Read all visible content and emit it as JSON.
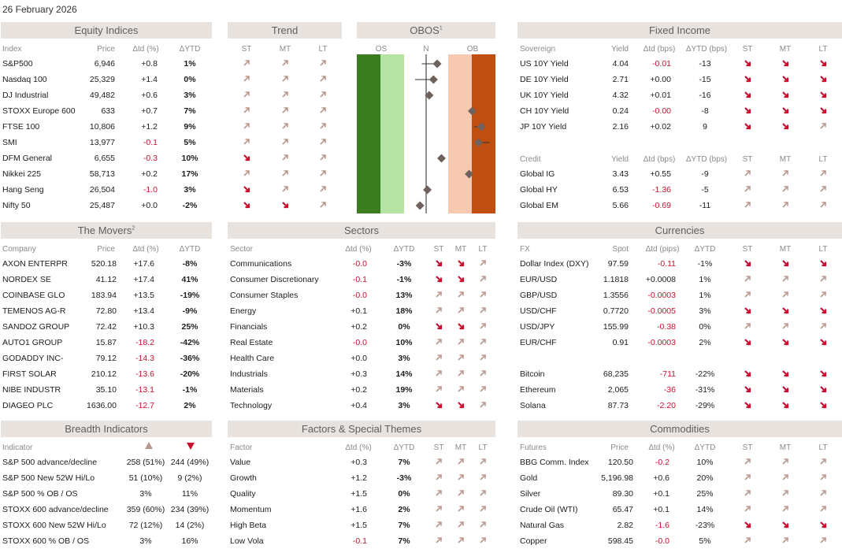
{
  "date": "26 February 2026",
  "colors": {
    "header_bg": "#e8e3de",
    "neg": "#c8102e",
    "up_arrow": "#b9988e",
    "down_arrow": "#c8102e",
    "os_dark": "#3a7d1f",
    "os_light": "#b5e3a4",
    "ob_light": "#f6c9b0",
    "ob_dark": "#c04e10"
  },
  "equity": {
    "title": "Equity Indices",
    "cols": [
      "Index",
      "Price",
      "Δtd (%)",
      "ΔYTD"
    ],
    "rows": [
      {
        "name": "S&P500",
        "price": "6,946",
        "d": "+0.8",
        "ytd": "1%"
      },
      {
        "name": "Nasdaq 100",
        "price": "25,329",
        "d": "+1.4",
        "ytd": "0%"
      },
      {
        "name": "DJ Industrial",
        "price": "49,482",
        "d": "+0.6",
        "ytd": "3%"
      },
      {
        "name": "STOXX Europe 600",
        "price": "633",
        "d": "+0.7",
        "ytd": "7%"
      },
      {
        "name": "FTSE 100",
        "price": "10,806",
        "d": "+1.2",
        "ytd": "9%"
      },
      {
        "name": "SMI",
        "price": "13,977",
        "d": "-0.1",
        "ytd": "5%"
      },
      {
        "name": "DFM General",
        "price": "6,655",
        "d": "-0.3",
        "ytd": "10%"
      },
      {
        "name": "Nikkei 225",
        "price": "58,713",
        "d": "+0.2",
        "ytd": "17%"
      },
      {
        "name": "Hang Seng",
        "price": "26,504",
        "d": "-1.0",
        "ytd": "3%"
      },
      {
        "name": "Nifty 50",
        "price": "25,487",
        "d": "+0.0",
        "ytd": "-2%"
      }
    ]
  },
  "trend": {
    "title": "Trend",
    "cols": [
      "ST",
      "MT",
      "LT"
    ],
    "rows": [
      [
        "up",
        "up",
        "up"
      ],
      [
        "up",
        "up",
        "up"
      ],
      [
        "up",
        "up",
        "up"
      ],
      [
        "up",
        "up",
        "up"
      ],
      [
        "up",
        "up",
        "up"
      ],
      [
        "up",
        "up",
        "up"
      ],
      [
        "down",
        "up",
        "up"
      ],
      [
        "up",
        "up",
        "up"
      ],
      [
        "down",
        "up",
        "up"
      ],
      [
        "down",
        "down",
        "up"
      ]
    ]
  },
  "obos": {
    "title": "OBOS",
    "sup": "1",
    "labels": [
      "OS",
      "N",
      "OB"
    ],
    "markers": [
      {
        "v": 0.18,
        "w": -0.25
      },
      {
        "v": 0.12,
        "w": -0.3
      },
      {
        "v": 0.05,
        "w": 0
      },
      {
        "v": 0.75,
        "w": 0
      },
      {
        "v": 0.9,
        "w": -0.12
      },
      {
        "v": 0.85,
        "w": 0.18
      },
      {
        "v": 0.25,
        "w": 0
      },
      {
        "v": 0.7,
        "w": 0
      },
      {
        "v": 0.02,
        "w": 0
      },
      {
        "v": -0.1,
        "w": 0
      }
    ]
  },
  "fixed": {
    "title": "Fixed Income",
    "cols": [
      "Sovereign",
      "Yield",
      "Δtd (bps)",
      "ΔYTD (bps)",
      "ST",
      "MT",
      "LT"
    ],
    "rows": [
      {
        "name": "US 10Y Yield",
        "y": "4.04",
        "d": "-0.01",
        "ytd": "-13",
        "t": [
          "down",
          "down",
          "down"
        ]
      },
      {
        "name": "DE 10Y Yield",
        "y": "2.71",
        "d": "+0.00",
        "ytd": "-15",
        "t": [
          "down",
          "down",
          "down"
        ]
      },
      {
        "name": "UK 10Y Yield",
        "y": "4.32",
        "d": "+0.01",
        "ytd": "-16",
        "t": [
          "down",
          "down",
          "down"
        ]
      },
      {
        "name": "CH 10Y Yield",
        "y": "0.24",
        "d": "-0.00",
        "ytd": "-8",
        "t": [
          "down",
          "down",
          "down"
        ]
      },
      {
        "name": "JP 10Y Yield",
        "y": "2.16",
        "d": "+0.02",
        "ytd": "9",
        "t": [
          "down",
          "down",
          "up"
        ]
      }
    ],
    "credit_cols": [
      "Credit",
      "Yield",
      "Δtd (bps)",
      "ΔYTD (bps)",
      "ST",
      "MT",
      "LT"
    ],
    "credit": [
      {
        "name": "Global IG",
        "y": "3.43",
        "d": "+0.55",
        "ytd": "-9",
        "t": [
          "up",
          "up",
          "up"
        ]
      },
      {
        "name": "Global HY",
        "y": "6.53",
        "d": "-1.36",
        "ytd": "-5",
        "t": [
          "up",
          "up",
          "up"
        ]
      },
      {
        "name": "Global EM",
        "y": "5.66",
        "d": "-0.69",
        "ytd": "-11",
        "t": [
          "up",
          "up",
          "up"
        ]
      }
    ]
  },
  "movers": {
    "title": "The Movers",
    "sup": "2",
    "cols": [
      "Company",
      "Price",
      "Δtd (%)",
      "ΔYTD"
    ],
    "rows": [
      {
        "name": "AXON ENTERPR",
        "price": "520.18",
        "d": "+17.6",
        "ytd": "-8%"
      },
      {
        "name": "NORDEX SE",
        "price": "41.12",
        "d": "+17.4",
        "ytd": "41%"
      },
      {
        "name": "COINBASE GLO",
        "price": "183.94",
        "d": "+13.5",
        "ytd": "-19%"
      },
      {
        "name": "TEMENOS AG-R",
        "price": "72.80",
        "d": "+13.4",
        "ytd": "-9%"
      },
      {
        "name": "SANDOZ GROUP",
        "price": "72.42",
        "d": "+10.3",
        "ytd": "25%"
      },
      {
        "name": "AUTO1 GROUP",
        "price": "15.87",
        "d": "-18.2",
        "ytd": "-42%"
      },
      {
        "name": "GODADDY INC-",
        "price": "79.12",
        "d": "-14.3",
        "ytd": "-36%"
      },
      {
        "name": "FIRST SOLAR",
        "price": "210.12",
        "d": "-13.6",
        "ytd": "-20%"
      },
      {
        "name": "NIBE INDUSTR",
        "price": "35.10",
        "d": "-13.1",
        "ytd": "-1%"
      },
      {
        "name": "DIAGEO PLC",
        "price": "1636.00",
        "d": "-12.7",
        "ytd": "2%"
      }
    ]
  },
  "sectors": {
    "title": "Sectors",
    "cols": [
      "Sector",
      "Δtd (%)",
      "ΔYTD",
      "ST",
      "MT",
      "LT"
    ],
    "rows": [
      {
        "name": "Communications",
        "d": "-0.0",
        "ytd": "-3%",
        "t": [
          "down",
          "down",
          "up"
        ]
      },
      {
        "name": "Consumer Discretionary",
        "d": "-0.1",
        "ytd": "-1%",
        "t": [
          "down",
          "down",
          "up"
        ]
      },
      {
        "name": "Consumer Staples",
        "d": "-0.0",
        "ytd": "13%",
        "t": [
          "up",
          "up",
          "up"
        ]
      },
      {
        "name": "Energy",
        "d": "+0.1",
        "ytd": "18%",
        "t": [
          "up",
          "up",
          "up"
        ]
      },
      {
        "name": "Financials",
        "d": "+0.2",
        "ytd": "0%",
        "t": [
          "down",
          "down",
          "up"
        ]
      },
      {
        "name": "Real Estate",
        "d": "-0.0",
        "ytd": "10%",
        "t": [
          "up",
          "up",
          "up"
        ]
      },
      {
        "name": "Health Care",
        "d": "+0.0",
        "ytd": "3%",
        "t": [
          "up",
          "up",
          "up"
        ]
      },
      {
        "name": "Industrials",
        "d": "+0.3",
        "ytd": "14%",
        "t": [
          "up",
          "up",
          "up"
        ]
      },
      {
        "name": "Materials",
        "d": "+0.2",
        "ytd": "19%",
        "t": [
          "up",
          "up",
          "up"
        ]
      },
      {
        "name": "Technology",
        "d": "+0.4",
        "ytd": "3%",
        "t": [
          "down",
          "down",
          "up"
        ]
      }
    ]
  },
  "currencies": {
    "title": "Currencies",
    "cols": [
      "FX",
      "Spot",
      "Δtd (pips)",
      "ΔYTD",
      "ST",
      "MT",
      "LT"
    ],
    "rows": [
      {
        "name": "Dollar Index (DXY)",
        "s": "97.59",
        "d": "-0.11",
        "ytd": "-1%",
        "t": [
          "down",
          "down",
          "down"
        ]
      },
      {
        "name": "EUR/USD",
        "s": "1.1818",
        "d": "+0.0008",
        "ytd": "1%",
        "t": [
          "up",
          "up",
          "up"
        ]
      },
      {
        "name": "GBP/USD",
        "s": "1.3556",
        "d": "-0.0003",
        "ytd": "1%",
        "t": [
          "up",
          "up",
          "up"
        ]
      },
      {
        "name": "USD/CHF",
        "s": "0.7720",
        "d": "-0.0005",
        "ytd": "3%",
        "t": [
          "down",
          "down",
          "down"
        ]
      },
      {
        "name": "USD/JPY",
        "s": "155.99",
        "d": "-0.38",
        "ytd": "0%",
        "t": [
          "up",
          "up",
          "up"
        ]
      },
      {
        "name": "EUR/CHF",
        "s": "0.91",
        "d": "-0.0003",
        "ytd": "2%",
        "t": [
          "down",
          "down",
          "down"
        ]
      }
    ],
    "crypto": [
      {
        "name": "Bitcoin",
        "s": "68,235",
        "d": "-711",
        "ytd": "-22%",
        "t": [
          "down",
          "down",
          "down"
        ]
      },
      {
        "name": "Ethereum",
        "s": "2,065",
        "d": "-36",
        "ytd": "-31%",
        "t": [
          "down",
          "down",
          "down"
        ]
      },
      {
        "name": "Solana",
        "s": "87.73",
        "d": "-2.20",
        "ytd": "-29%",
        "t": [
          "down",
          "down",
          "down"
        ]
      }
    ]
  },
  "breadth": {
    "title": "Breadth Indicators",
    "cols": [
      "Indicator"
    ],
    "rows": [
      {
        "name": "S&P 500 advance/decline",
        "a": "258 (51%)",
        "b": "244 (49%)"
      },
      {
        "name": "S&P 500 New 52W Hi/Lo",
        "a": "51 (10%)",
        "b": "9 (2%)"
      },
      {
        "name": "S&P 500 % OB / OS",
        "a": "3%",
        "b": "11%"
      },
      {
        "name": "STOXX 600 advance/decline",
        "a": "359 (60%)",
        "b": "234 (39%)"
      },
      {
        "name": "STOXX 600 New 52W Hi/Lo",
        "a": "72 (12%)",
        "b": "14 (2%)"
      },
      {
        "name": "STOXX 600 % OB / OS",
        "a": "3%",
        "b": "16%"
      }
    ]
  },
  "factors": {
    "title": "Factors & Special Themes",
    "cols": [
      "Factor",
      "Δtd (%)",
      "ΔYTD",
      "ST",
      "MT",
      "LT"
    ],
    "rows": [
      {
        "name": "Value",
        "d": "+0.3",
        "ytd": "7%",
        "t": [
          "up",
          "up",
          "up"
        ]
      },
      {
        "name": "Growth",
        "d": "+1.2",
        "ytd": "-3%",
        "t": [
          "up",
          "up",
          "up"
        ]
      },
      {
        "name": "Quality",
        "d": "+1.5",
        "ytd": "0%",
        "t": [
          "up",
          "up",
          "up"
        ]
      },
      {
        "name": "Momentum",
        "d": "+1.6",
        "ytd": "2%",
        "t": [
          "up",
          "up",
          "up"
        ]
      },
      {
        "name": "High Beta",
        "d": "+1.5",
        "ytd": "7%",
        "t": [
          "up",
          "up",
          "up"
        ]
      },
      {
        "name": "Low Vola",
        "d": "-0.1",
        "ytd": "7%",
        "t": [
          "up",
          "up",
          "up"
        ]
      }
    ]
  },
  "commod": {
    "title": "Commodities",
    "cols": [
      "Futures",
      "Price",
      "Δtd (%)",
      "ΔYTD",
      "ST",
      "MT",
      "LT"
    ],
    "rows": [
      {
        "name": "BBG Comm. Index",
        "p": "120.50",
        "d": "-0.2",
        "ytd": "10%",
        "t": [
          "up",
          "up",
          "up"
        ]
      },
      {
        "name": "Gold",
        "p": "5,196.98",
        "d": "+0.6",
        "ytd": "20%",
        "t": [
          "up",
          "up",
          "up"
        ]
      },
      {
        "name": "Silver",
        "p": "89.30",
        "d": "+0.1",
        "ytd": "25%",
        "t": [
          "up",
          "up",
          "up"
        ]
      },
      {
        "name": "Crude Oil (WTI)",
        "p": "65.47",
        "d": "+0.1",
        "ytd": "14%",
        "t": [
          "up",
          "up",
          "up"
        ]
      },
      {
        "name": "Natural Gas",
        "p": "2.82",
        "d": "-1.6",
        "ytd": "-23%",
        "t": [
          "down",
          "down",
          "down"
        ]
      },
      {
        "name": "Copper",
        "p": "598.45",
        "d": "-0.0",
        "ytd": "5%",
        "t": [
          "up",
          "up",
          "up"
        ]
      }
    ]
  }
}
